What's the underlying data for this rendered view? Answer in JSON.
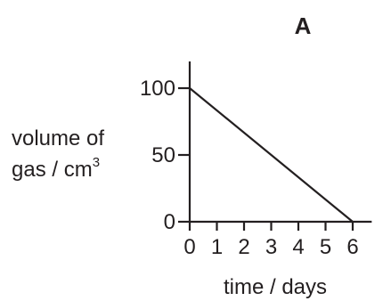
{
  "chart_data": {
    "type": "line",
    "title": "A",
    "xlabel": "time / days",
    "ylabel_line1": "volume of",
    "ylabel_line2": "gas / cm",
    "ylabel_sup": "3",
    "x_ticks": [
      "0",
      "1",
      "2",
      "3",
      "4",
      "5",
      "6"
    ],
    "y_ticks": [
      "0",
      "50",
      "100"
    ],
    "xlim": [
      0,
      6.7
    ],
    "ylim": [
      0,
      120
    ],
    "grid": false,
    "series": [
      {
        "x": [
          0,
          6
        ],
        "y": [
          100,
          0
        ]
      }
    ]
  }
}
